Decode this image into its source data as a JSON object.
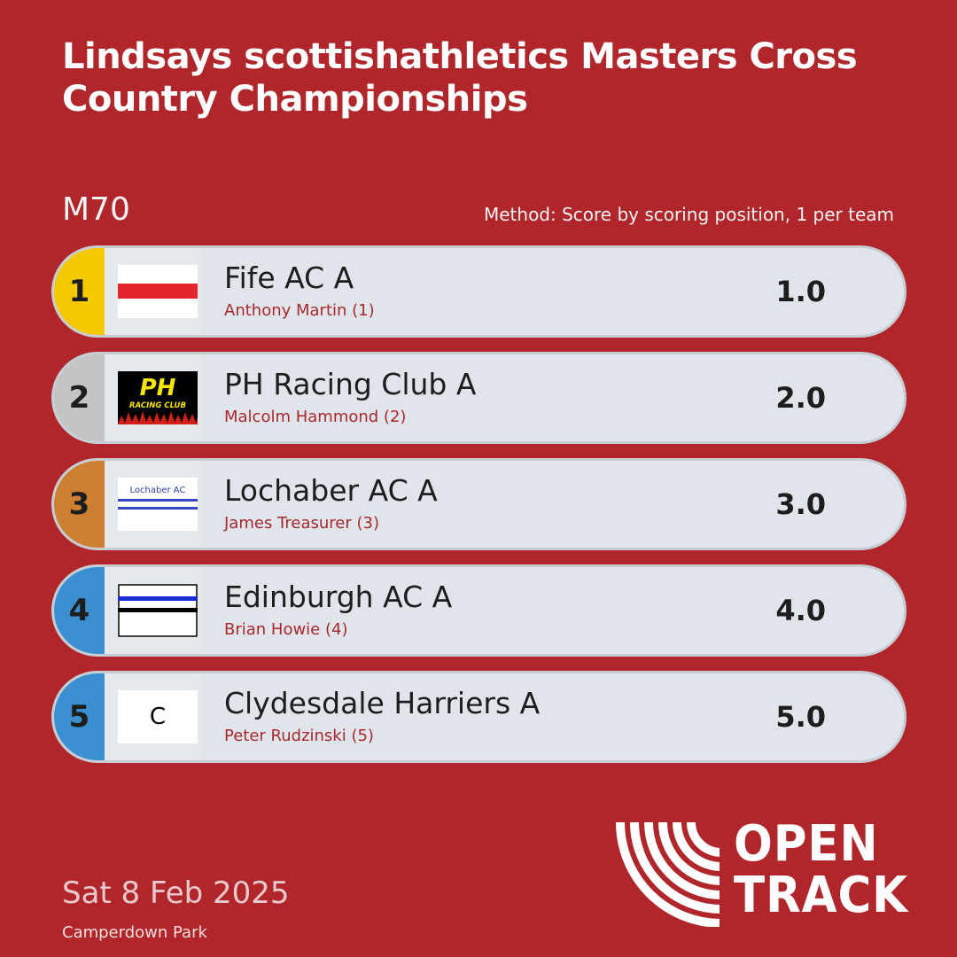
{
  "header": {
    "title": "Lindsays scottishathletics Masters Cross Country Championships",
    "category": "M70",
    "method": "Method: Score by scoring position, 1 per team"
  },
  "colors": {
    "background": "#b0262b",
    "gold": "#f5c800",
    "silver": "#c4c4c4",
    "bronze": "#cd7f32",
    "blue": "#3b8fd0"
  },
  "results": [
    {
      "position": "1",
      "team": "Fife AC A",
      "athlete": "Anthony Martin (1)",
      "score": "1.0",
      "badge_color": "#f5c800",
      "logo": "fife-ac-logo"
    },
    {
      "position": "2",
      "team": "PH Racing Club A",
      "athlete": "Malcolm Hammond (2)",
      "score": "2.0",
      "badge_color": "#c4c4c4",
      "logo": "ph-racing-club-logo",
      "logo_text": {
        "main": "PH",
        "sub": "RACING CLUB"
      }
    },
    {
      "position": "3",
      "team": "Lochaber AC A",
      "athlete": "James Treasurer (3)",
      "score": "3.0",
      "badge_color": "#cd7f32",
      "logo": "lochaber-ac-logo",
      "logo_text": "Lochaber AC"
    },
    {
      "position": "4",
      "team": "Edinburgh AC A",
      "athlete": "Brian Howie (4)",
      "score": "4.0",
      "badge_color": "#3b8fd0",
      "logo": "edinburgh-ac-logo"
    },
    {
      "position": "5",
      "team": "Clydesdale Harriers A",
      "athlete": "Peter Rudzinski (5)",
      "score": "5.0",
      "badge_color": "#3b8fd0",
      "logo": "clydesdale-harriers-logo",
      "logo_text": "C"
    }
  ],
  "footer": {
    "date": "Sat 8 Feb 2025",
    "venue": "Camperdown Park",
    "brand_line1": "OPEN",
    "brand_line2": "TRACK"
  }
}
